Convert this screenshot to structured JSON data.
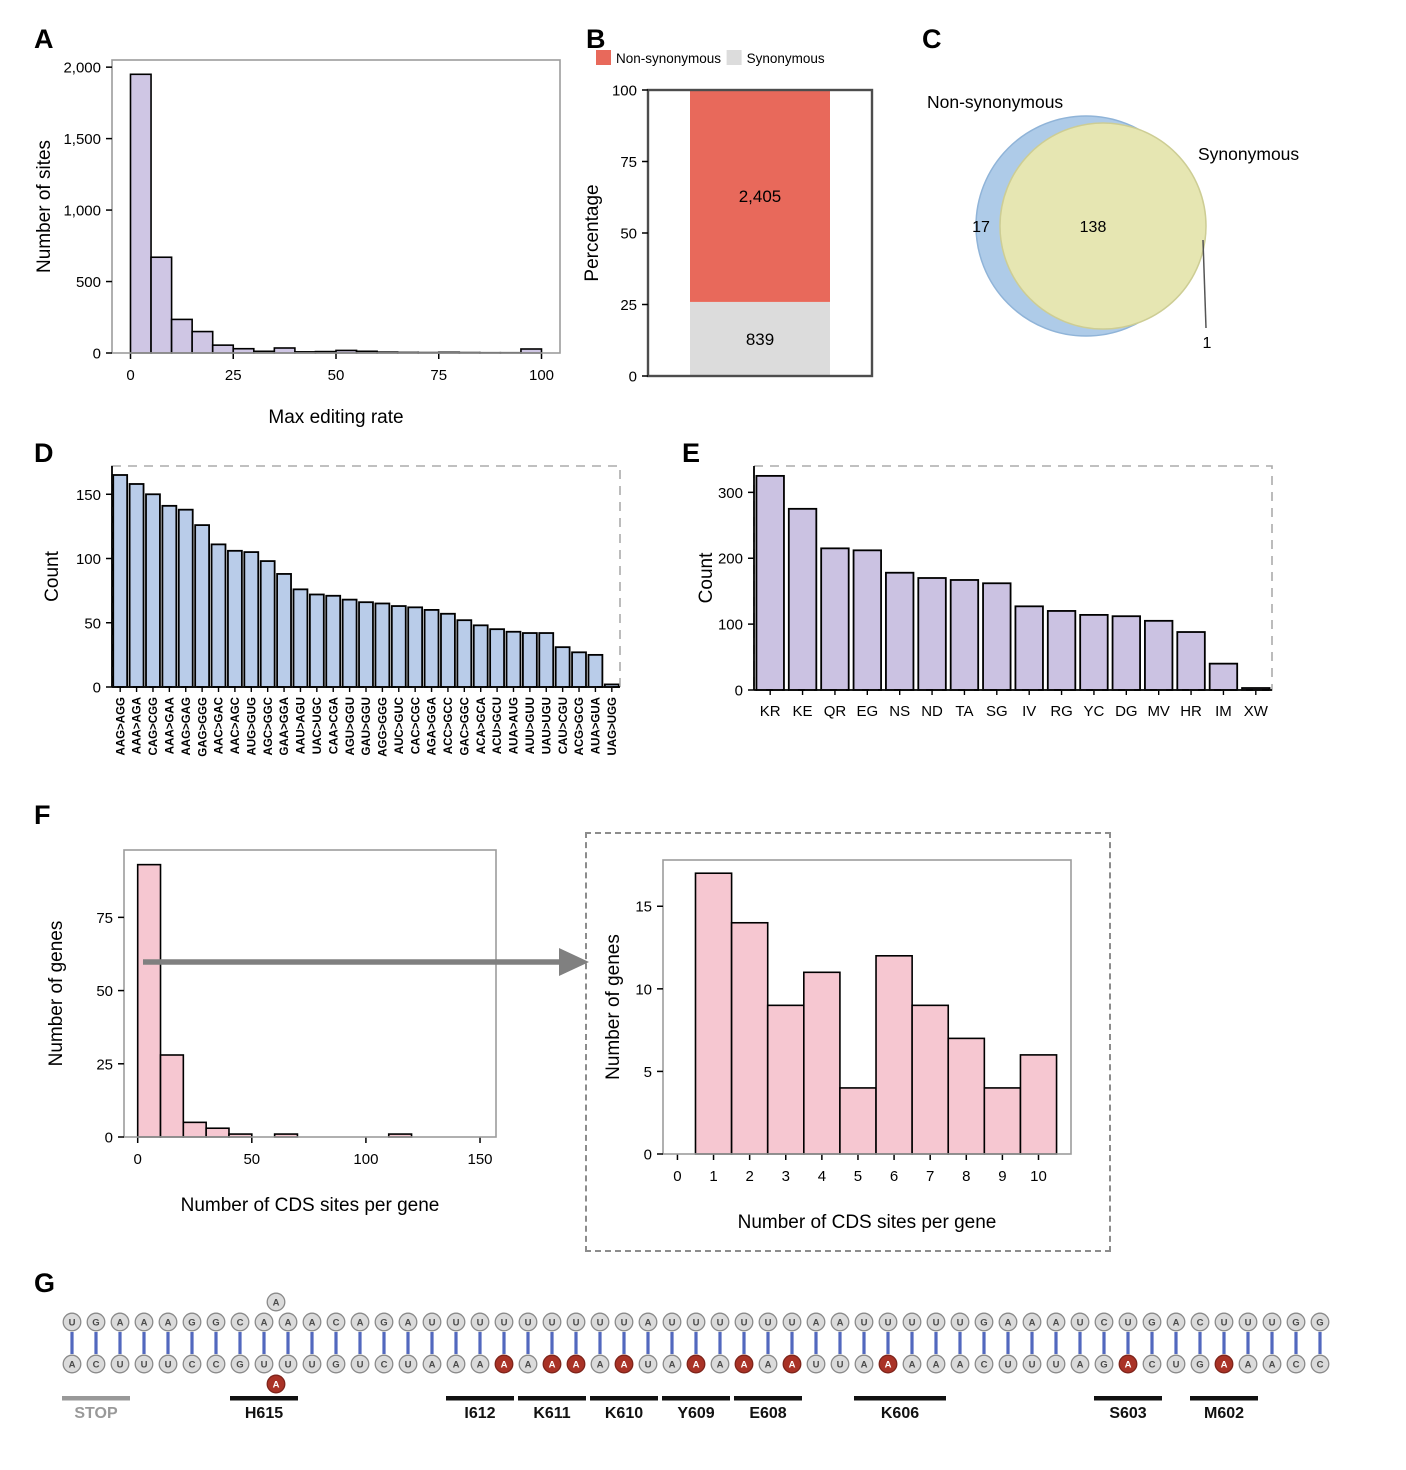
{
  "panels": {
    "A": "A",
    "B": "B",
    "C": "C",
    "D": "D",
    "E": "E",
    "F": "F",
    "G": "G"
  },
  "zoom_arrow": {
    "color": "#808080"
  },
  "chart_data": [
    {
      "id": "A",
      "type": "bar",
      "subtype": "histogram",
      "xlabel": "Max editing rate",
      "ylabel": "Number of sites",
      "xlim": [
        -4.5,
        104.5
      ],
      "ylim": [
        0,
        2050
      ],
      "xticks": [
        0,
        25,
        50,
        75,
        100
      ],
      "yticks": [
        0,
        500,
        1000,
        1500,
        2000
      ],
      "ytick_labels": [
        "0",
        "500",
        "1,000",
        "1,500",
        "2,000"
      ],
      "bin_width": 5,
      "x": [
        2.5,
        7.5,
        12.5,
        17.5,
        22.5,
        27.5,
        32.5,
        37.5,
        42.5,
        47.5,
        52.5,
        57.5,
        62.5,
        67.5,
        72.5,
        77.5,
        82.5,
        87.5,
        92.5,
        97.5
      ],
      "values": [
        1950,
        670,
        235,
        150,
        55,
        30,
        12,
        35,
        8,
        10,
        18,
        12,
        6,
        4,
        3,
        5,
        3,
        2,
        2,
        28
      ],
      "bar_fill": "#CFC6E4",
      "bar_stroke": "#000000",
      "border": "solid",
      "grid": false
    },
    {
      "id": "B",
      "type": "bar",
      "subtype": "stacked_percent",
      "ylabel": "Percentage",
      "ylim": [
        0,
        100
      ],
      "yticks": [
        0,
        25,
        50,
        75,
        100
      ],
      "legend": [
        {
          "label": "Non-synonymous",
          "color": "#E8695B"
        },
        {
          "label": "Synonymous",
          "color": "#DCDCDC"
        }
      ],
      "segments": [
        {
          "label": "Synonymous",
          "value": 839,
          "value_label": "839",
          "percent": 25.9,
          "color": "#DCDCDC"
        },
        {
          "label": "Non-synonymous",
          "value": 2405,
          "value_label": "2,405",
          "percent": 74.1,
          "color": "#E8695B"
        }
      ]
    },
    {
      "id": "C",
      "type": "venn",
      "sets": [
        {
          "label": "Non-synonymous",
          "only_count": 17,
          "color": "#AECBE8"
        },
        {
          "label": "Synonymous",
          "only_count": 1,
          "color": "#E6E6B2"
        }
      ],
      "overlap_count": 138
    },
    {
      "id": "D",
      "type": "bar",
      "ylabel": "Count",
      "ylim": [
        0,
        172
      ],
      "yticks": [
        0,
        50,
        100,
        150
      ],
      "categories": [
        "AAG>AGG",
        "AAA>AGA",
        "CAG>CGG",
        "AAA>GAA",
        "AAG>GAG",
        "GAG>GGG",
        "AAC>GAC",
        "AAC>AGC",
        "AUG>GUG",
        "AGC>GGC",
        "GAA>GGA",
        "AAU>AGU",
        "UAC>UGC",
        "CAA>CGA",
        "AGU>GGU",
        "GAU>GGU",
        "AGG>GGG",
        "AUC>GUC",
        "CAC>CGC",
        "AGA>GGA",
        "ACC>GCC",
        "GAC>GGC",
        "ACA>GCA",
        "ACU>GCU",
        "AUA>AUG",
        "AUU>GUU",
        "UAU>UGU",
        "CAU>CGU",
        "ACG>GCG",
        "AUA>GUA",
        "UAG>UGG"
      ],
      "values": [
        165,
        158,
        150,
        141,
        138,
        126,
        111,
        106,
        105,
        98,
        88,
        76,
        72,
        71,
        68,
        66,
        65,
        63,
        62,
        60,
        57,
        52,
        48,
        45,
        43,
        42,
        42,
        31,
        27,
        25,
        2
      ],
      "bar_fill": "#B9CCE9",
      "bar_stroke": "#000000",
      "rotate_labels": true,
      "border": "dashed"
    },
    {
      "id": "E",
      "type": "bar",
      "ylabel": "Count",
      "ylim": [
        0,
        340
      ],
      "yticks": [
        0,
        100,
        200,
        300
      ],
      "categories": [
        "KR",
        "KE",
        "QR",
        "EG",
        "NS",
        "ND",
        "TA",
        "SG",
        "IV",
        "RG",
        "YC",
        "DG",
        "MV",
        "HR",
        "IM",
        "XW"
      ],
      "values": [
        325,
        275,
        215,
        212,
        178,
        170,
        167,
        162,
        127,
        120,
        114,
        112,
        105,
        88,
        40,
        3
      ],
      "bar_fill": "#CBC2E2",
      "bar_stroke": "#000000",
      "rotate_labels": false,
      "border": "dashed"
    },
    {
      "id": "F_main",
      "type": "bar",
      "subtype": "histogram",
      "xlabel": "Number of CDS sites per gene",
      "ylabel": "Number of genes",
      "xlim": [
        -6,
        157
      ],
      "ylim": [
        0,
        98
      ],
      "xticks": [
        0,
        50,
        100,
        150
      ],
      "yticks": [
        0,
        25,
        50,
        75
      ],
      "bin_width": 10,
      "x": [
        5,
        15,
        25,
        35,
        45,
        55,
        65,
        75,
        85,
        95,
        105,
        115,
        125,
        135,
        145
      ],
      "values": [
        93,
        28,
        5,
        3,
        1,
        0,
        1,
        0,
        0,
        0,
        0,
        1,
        0,
        0,
        0
      ],
      "bar_fill": "#F6C7D1",
      "bar_stroke": "#000000",
      "border": "solid"
    },
    {
      "id": "F_inset",
      "type": "bar",
      "subtype": "histogram",
      "xlabel": "Number of CDS sites per gene",
      "ylabel": "Number of genes",
      "xlim": [
        -0.4,
        10.9
      ],
      "ylim": [
        0,
        17.8
      ],
      "xticks": [
        0,
        1,
        2,
        3,
        4,
        5,
        6,
        7,
        8,
        9,
        10
      ],
      "yticks": [
        0,
        5,
        10,
        15
      ],
      "bin_width": 1,
      "x": [
        1,
        2,
        3,
        4,
        5,
        6,
        7,
        8,
        9,
        10
      ],
      "values": [
        17,
        14,
        9,
        11,
        4,
        12,
        9,
        7,
        4,
        6
      ],
      "bar_fill": "#F6C7D1",
      "bar_stroke": "#000000",
      "border": "solid"
    },
    {
      "id": "G",
      "type": "rna_duplex",
      "top_strand": "UGAAAGGCAAACAGAUUUUUUUUUAUUUUUUAAUUUUUGAAAUCUGACUUUGG",
      "bottom_strand": "ACUUUCCGUUUGUCUAAAAAAAAAUAAAAAAUUAAAAACUUUAGACUGAAACC",
      "edited_columns": [
        19,
        21,
        22,
        24,
        27,
        29,
        31,
        35,
        45,
        49
      ],
      "top_bulge": {
        "letter": "A",
        "after_column": 9,
        "edited": false
      },
      "bottom_bulge": {
        "letter": "A",
        "after_column": 9,
        "edited": true
      },
      "labels": [
        {
          "text": "STOP",
          "from": 1,
          "to": 3,
          "muted": true
        },
        {
          "text": "H615",
          "from": 8,
          "to": 10
        },
        {
          "text": "I612",
          "from": 17,
          "to": 19
        },
        {
          "text": "K611",
          "from": 20,
          "to": 22
        },
        {
          "text": "K610",
          "from": 23,
          "to": 25
        },
        {
          "text": "Y609",
          "from": 26,
          "to": 28
        },
        {
          "text": "E608",
          "from": 29,
          "to": 31
        },
        {
          "text": "K606",
          "from": 34,
          "to": 37
        },
        {
          "text": "S603",
          "from": 44,
          "to": 46
        },
        {
          "text": "M602",
          "from": 48,
          "to": 50
        }
      ],
      "colors": {
        "pair_line": "#5268BE",
        "base_fill": "#DBDBDB",
        "base_stroke": "#8A8A8A",
        "edited_fill": "#A93226",
        "edited_stroke": "#7E241B",
        "letter": "#4A4A4A",
        "muted": "#999999",
        "label": "#111111"
      }
    }
  ]
}
